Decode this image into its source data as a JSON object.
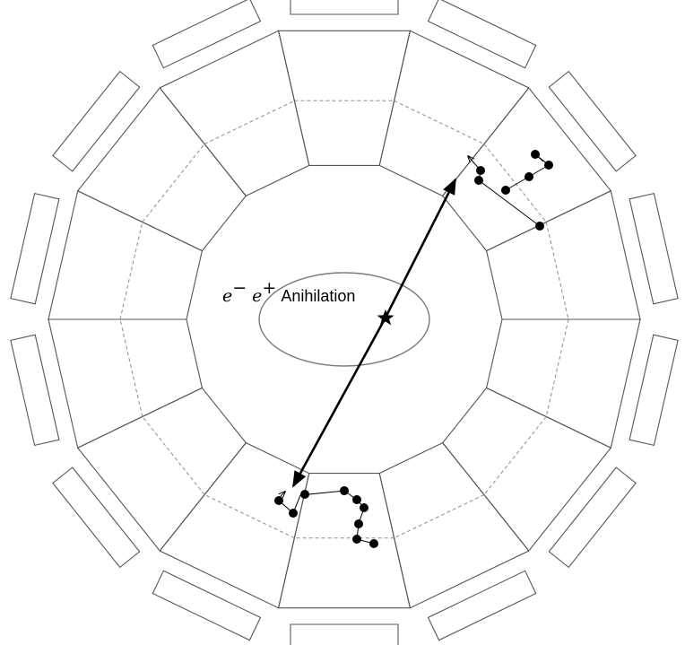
{
  "annotation": {
    "electron": "e",
    "electron_sign": "−",
    "positron": "e",
    "positron_sign": "+",
    "text": "Anihilation"
  },
  "colors": {
    "stroke": "#555555",
    "dashed": "#8c8c8c",
    "ellipse": "#7a7a7a",
    "track": "#000000",
    "hit": "#000000",
    "background": "#ffffff"
  },
  "detector": {
    "modules": 14,
    "readout_boxes": 14
  },
  "event": {
    "source_marker": "star-icon",
    "photons": 2,
    "scatter_clusters": 4
  }
}
